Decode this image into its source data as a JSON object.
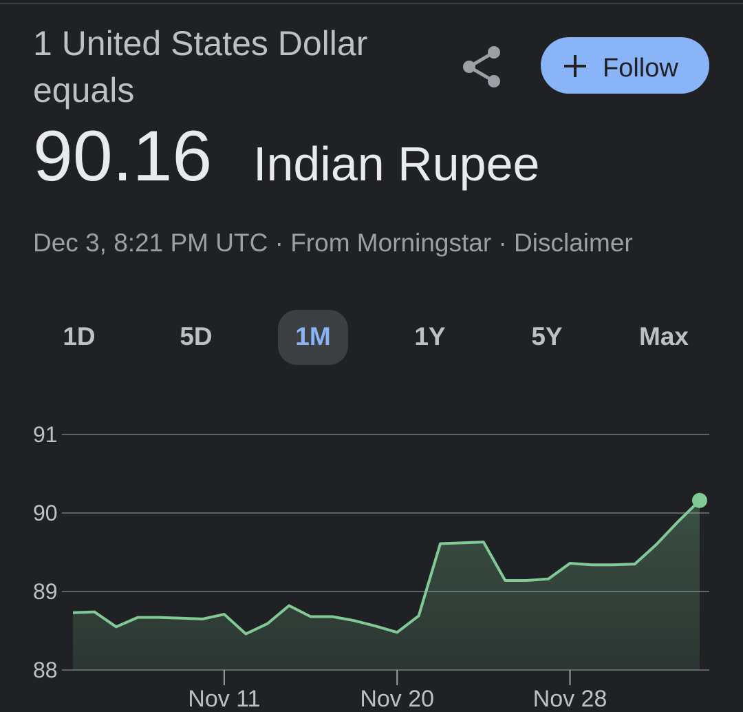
{
  "header": {
    "title": "1 United States Dollar",
    "title_line2": "equals",
    "rate": "90.16",
    "currency": "Indian Rupee",
    "meta": "Dec 3, 8:21 PM UTC · From Morningstar · Disclaimer",
    "follow": "Follow"
  },
  "tabs": [
    "1D",
    "5D",
    "1M",
    "1Y",
    "5Y",
    "Max"
  ],
  "selected_tab": 2,
  "chart_data": {
    "type": "area",
    "categories": [
      null,
      null,
      null,
      null,
      null,
      null,
      null,
      "Nov 11",
      null,
      null,
      null,
      null,
      null,
      null,
      null,
      "Nov 20",
      null,
      null,
      null,
      null,
      null,
      null,
      null,
      "Nov 28",
      null,
      null,
      null,
      null,
      null,
      null
    ],
    "series": [
      {
        "color": "#81c995",
        "values": [
          88.73,
          88.74,
          88.55,
          88.67,
          88.67,
          88.66,
          88.65,
          88.71,
          88.46,
          88.59,
          88.82,
          88.68,
          88.68,
          88.63,
          88.56,
          88.48,
          88.69,
          89.61,
          89.62,
          89.63,
          89.14,
          89.14,
          89.16,
          89.36,
          89.34,
          89.34,
          89.35,
          89.6,
          89.89,
          90.16
        ]
      }
    ],
    "ylim": [
      88,
      91
    ],
    "yticks": [
      88,
      89,
      90,
      91
    ],
    "grid": true
  }
}
